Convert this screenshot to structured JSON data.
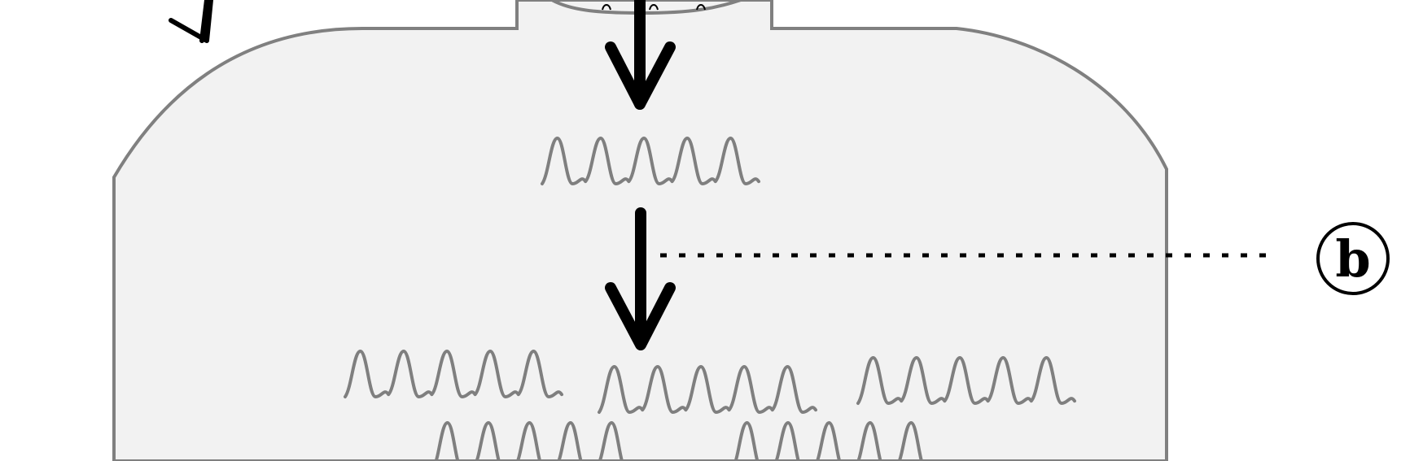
{
  "labels": {
    "marker": "b"
  },
  "icons": [
    "wave-icon",
    "down-arrow-icon",
    "dotted-leader-line"
  ],
  "colors": {
    "cell_fill": "#f2f2f2",
    "cell_outline": "#808080",
    "wave": "#7f7f7f",
    "arrow": "#000000"
  }
}
